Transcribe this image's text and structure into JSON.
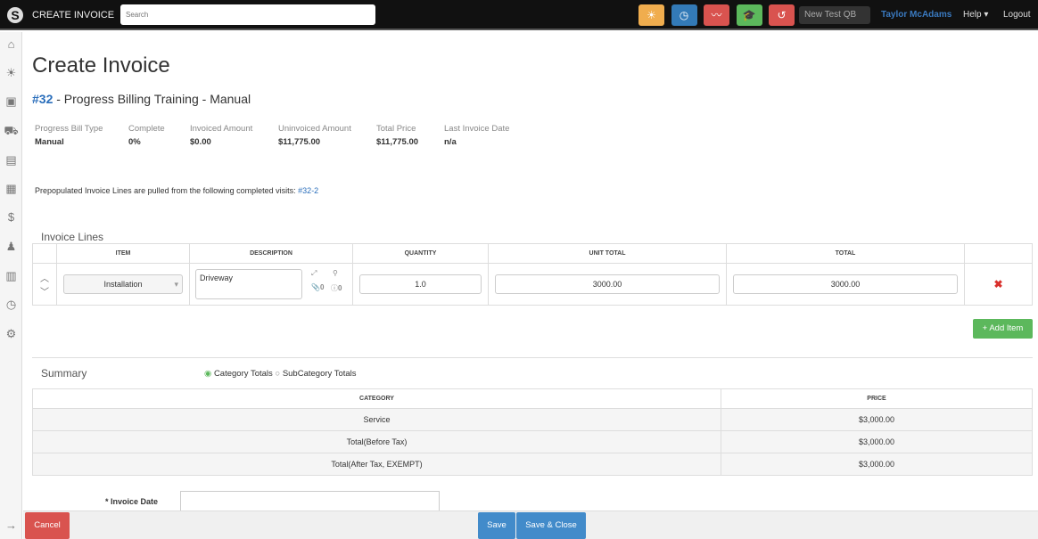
{
  "topbar": {
    "logo": "S",
    "title": "CREATE INVOICE",
    "search_placeholder": "Search",
    "account": "New Test QB",
    "user": "Taylor McAdams",
    "help": "Help ▾",
    "logout": "Logout",
    "buttons": [
      {
        "icon": "sun-icon",
        "glyph": "☀",
        "color": "#f0ad4e"
      },
      {
        "icon": "clock-icon",
        "glyph": "◷",
        "color": "#337ab7"
      },
      {
        "icon": "chart-icon",
        "glyph": "〰",
        "color": "#d9534f"
      },
      {
        "icon": "graduation-cap-icon",
        "glyph": "🎓",
        "color": "#5cb85c"
      },
      {
        "icon": "history-icon",
        "glyph": "↺",
        "color": "#d9534f"
      }
    ]
  },
  "page": {
    "title": "Create Invoice",
    "job_number": "#32",
    "job_name": " - Progress Billing Training - Manual"
  },
  "stats": [
    {
      "label": "Progress Bill Type",
      "value": "Manual"
    },
    {
      "label": "Complete",
      "value": "0%"
    },
    {
      "label": "Invoiced Amount",
      "value": "$0.00"
    },
    {
      "label": "Uninvoiced Amount",
      "value": "$11,775.00"
    },
    {
      "label": "Total Price",
      "value": "$11,775.00"
    },
    {
      "label": "Last Invoice Date",
      "value": "n/a"
    }
  ],
  "prepop": {
    "text": "Prepopulated Invoice Lines are pulled from the following completed visits: ",
    "link": "#32-2"
  },
  "lines": {
    "heading": "Invoice Lines",
    "headers": [
      "ITEM",
      "DESCRIPTION",
      "QUANTITY",
      "UNIT TOTAL",
      "TOTAL"
    ],
    "row": {
      "item": "Installation",
      "description": "Driveway",
      "quantity": "1.0",
      "unit_total": "3000.00",
      "total": "3000.00",
      "attachments": "0",
      "notes": "0"
    },
    "add_label": "+ Add Item"
  },
  "summary": {
    "heading": "Summary",
    "radio1": "Category Totals",
    "radio2": "SubCategory Totals",
    "headers": [
      "CATEGORY",
      "PRICE"
    ],
    "rows": [
      {
        "category": "Service",
        "price": "$3,000.00"
      },
      {
        "category": "Total(Before Tax)",
        "price": "$3,000.00"
      },
      {
        "category": "Total(After Tax, EXEMPT)",
        "price": "$3,000.00"
      }
    ]
  },
  "invoice_date_label": "* Invoice Date",
  "footer": {
    "cancel": "Cancel",
    "save": "Save",
    "save_close": "Save & Close"
  }
}
